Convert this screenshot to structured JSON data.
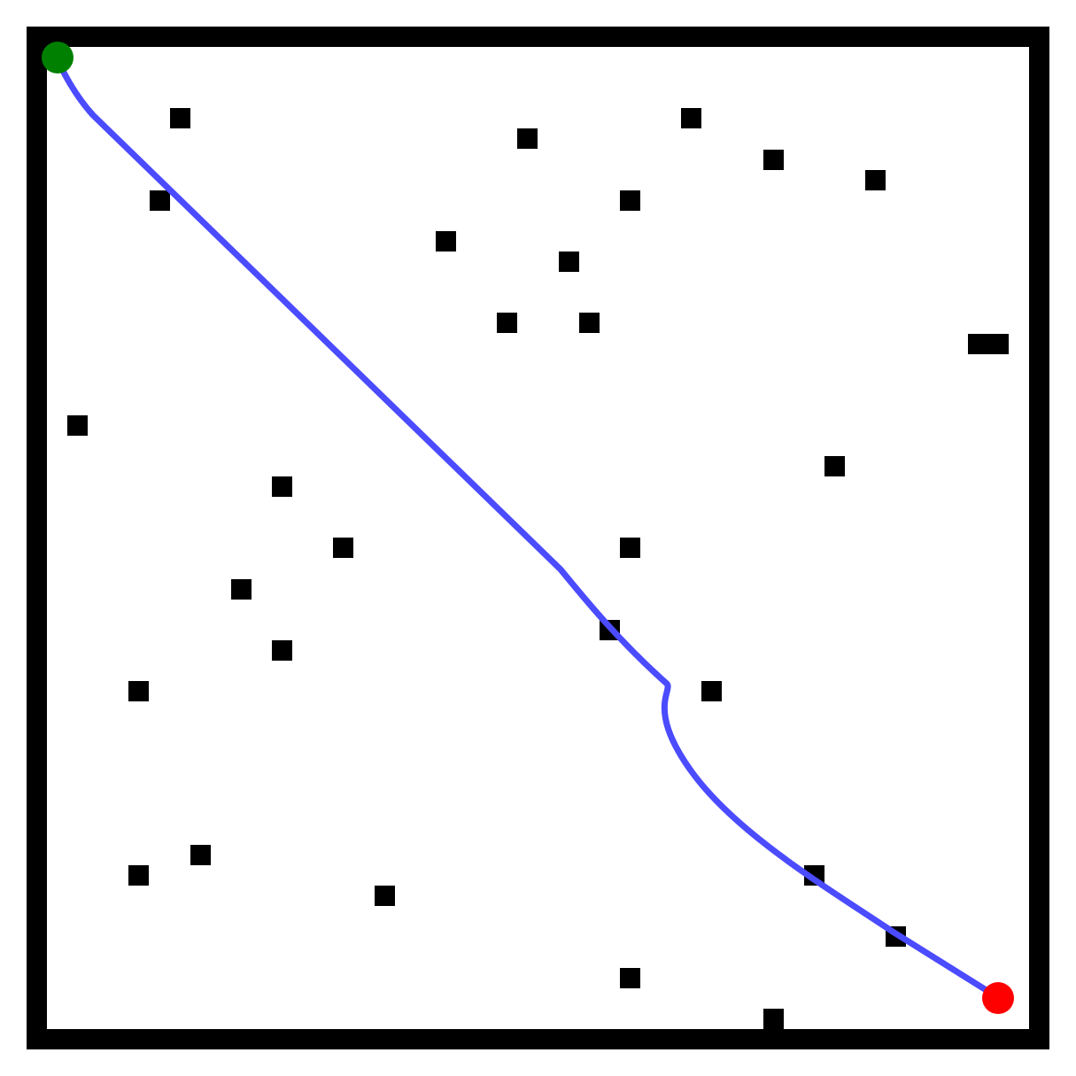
{
  "colors": {
    "background": "#ffffff",
    "wall": "#000000",
    "obstacle": "#000000",
    "path": "#4b4bff",
    "start": "#008000",
    "goal": "#ff0000"
  },
  "markers": {
    "start": "start-marker",
    "goal": "goal-marker"
  },
  "obstacles": [
    "obstacle",
    "obstacle",
    "obstacle",
    "obstacle",
    "obstacle",
    "obstacle",
    "obstacle",
    "obstacle",
    "obstacle",
    "obstacle",
    "obstacle",
    "obstacle",
    "obstacle",
    "obstacle",
    "obstacle",
    "obstacle",
    "obstacle",
    "obstacle",
    "obstacle",
    "obstacle",
    "obstacle",
    "obstacle",
    "obstacle",
    "obstacle",
    "obstacle",
    "obstacle",
    "obstacle",
    "obstacle",
    "obstacle",
    "obstacle",
    "obstacle",
    "obstacle",
    "obstacle"
  ]
}
